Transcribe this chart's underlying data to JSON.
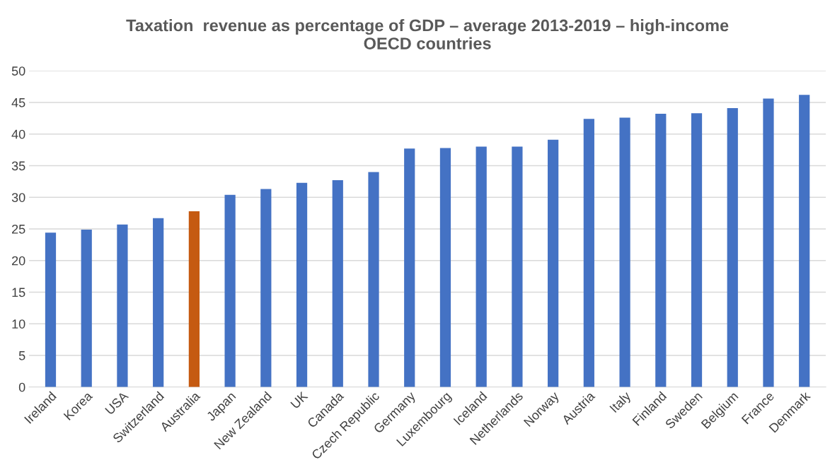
{
  "chart_data": {
    "type": "bar",
    "title": "Taxation  revenue as percentage of GDP – average 2013-2019 – high-income\nOECD countries",
    "categories": [
      "Ireland",
      "Korea",
      "USA",
      "Switzerland",
      "Australia",
      "Japan",
      "New Zealand",
      "UK",
      "Canada",
      "Czech Republic",
      "Germany",
      "Luxembourg",
      "Iceland",
      "Netherlands",
      "Norway",
      "Austria",
      "Italy",
      "Finland",
      "Sweden",
      "Belgium",
      "France",
      "Denmark"
    ],
    "values": [
      24.4,
      24.9,
      25.7,
      26.7,
      27.8,
      30.4,
      31.3,
      32.3,
      32.7,
      34.0,
      37.7,
      37.8,
      38.0,
      38.0,
      39.1,
      42.4,
      42.6,
      43.2,
      43.3,
      44.1,
      45.6,
      46.2
    ],
    "colors": [
      "#4472c4",
      "#4472c4",
      "#4472c4",
      "#4472c4",
      "#c55a11",
      "#4472c4",
      "#4472c4",
      "#4472c4",
      "#4472c4",
      "#4472c4",
      "#4472c4",
      "#4472c4",
      "#4472c4",
      "#4472c4",
      "#4472c4",
      "#4472c4",
      "#4472c4",
      "#4472c4",
      "#4472c4",
      "#4472c4",
      "#4472c4",
      "#4472c4"
    ],
    "ylim": [
      0,
      50
    ],
    "yticks": [
      0,
      5,
      10,
      15,
      20,
      25,
      30,
      35,
      40,
      45,
      50
    ],
    "grid": "y"
  }
}
